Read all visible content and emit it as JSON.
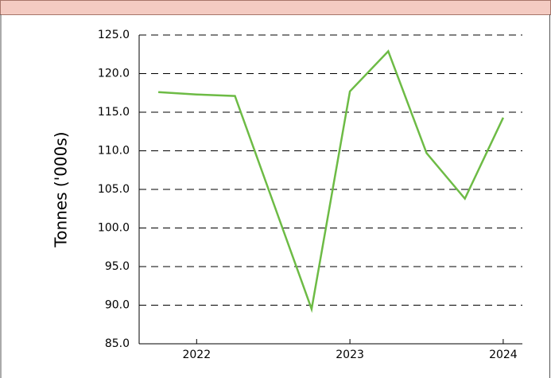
{
  "chart_data": {
    "type": "line",
    "y_label": "Tonnes ('000s)",
    "x": [
      2021.75,
      2022.0,
      2022.25,
      2022.5,
      2022.75,
      2023.0,
      2023.25,
      2023.5,
      2023.75,
      2024.0
    ],
    "series": [
      {
        "name": "Tonnes",
        "color": "#6dbb45",
        "values": [
          117.6,
          117.3,
          117.1,
          103.3,
          89.5,
          117.7,
          122.9,
          109.7,
          103.8,
          114.3
        ]
      }
    ],
    "xlim": [
      2021.625,
      2024.125
    ],
    "xticks": [
      2022,
      2023,
      2024
    ],
    "ylim": [
      85,
      125
    ],
    "yticks": [
      {
        "value": 85,
        "label": "85.0"
      },
      {
        "value": 90,
        "label": "90.0"
      },
      {
        "value": 95,
        "label": "95.0"
      },
      {
        "value": 100,
        "label": "100.0"
      },
      {
        "value": 105,
        "label": "105.0"
      },
      {
        "value": 110,
        "label": "110.0"
      },
      {
        "value": 115,
        "label": "115.0"
      },
      {
        "value": 120,
        "label": "120.0"
      },
      {
        "value": 125,
        "label": "125.0"
      }
    ],
    "grid": true
  }
}
